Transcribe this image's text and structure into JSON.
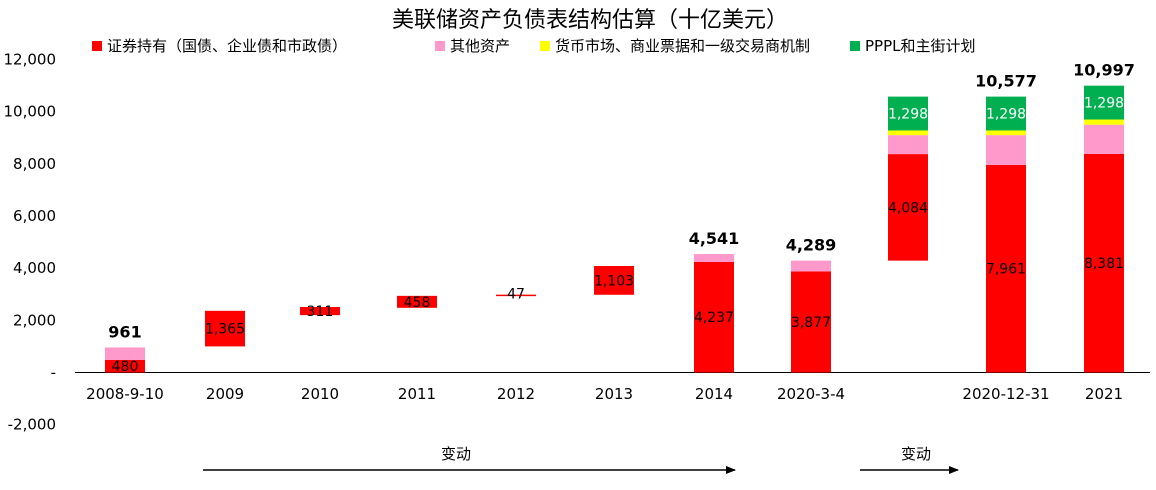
{
  "chart_data": {
    "type": "bar",
    "title": "美联储资产负债表结构估算（十亿美元）",
    "legend": [
      {
        "name": "证券持有（国债、企业债和市政债）",
        "color": "#ff0000"
      },
      {
        "name": "其他资产",
        "color": "#ff99cc"
      },
      {
        "name": "货币市场、商业票据和一级交易商机制",
        "color": "#ffff00"
      },
      {
        "name": "PPPL和主街计划",
        "color": "#00b050"
      }
    ],
    "y_ticks": [
      "12,000",
      "10,000",
      "8,000",
      "6,000",
      "4,000",
      "2,000",
      "-",
      "-2,000"
    ],
    "y_tick_values": [
      12000,
      10000,
      8000,
      6000,
      4000,
      2000,
      0,
      -2000
    ],
    "ylim": [
      -2000,
      12000
    ],
    "categories": [
      "2008-9-10",
      "2009",
      "2010",
      "2011",
      "2012",
      "2013",
      "2014",
      "2020-3-4",
      "",
      "2020-12-31",
      "2021"
    ],
    "bars": [
      {
        "category": "2008-9-10",
        "total_label": "961",
        "segments": [
          {
            "series": "证券持有（国债、企业债和市政债）",
            "from": 0,
            "to": 480,
            "label": "480"
          },
          {
            "series": "其他资产",
            "from": 480,
            "to": 961,
            "label": ""
          }
        ]
      },
      {
        "category": "2009",
        "total_label": "",
        "segments": [
          {
            "series": "证券持有（国债、企业债和市政债）",
            "from": 1000,
            "to": 2365,
            "label": "1,365"
          }
        ]
      },
      {
        "category": "2010",
        "total_label": "",
        "segments": [
          {
            "series": "证券持有（国债、企业债和市政债）",
            "from": 2200,
            "to": 2511,
            "label": "311"
          }
        ]
      },
      {
        "category": "2011",
        "total_label": "",
        "segments": [
          {
            "series": "证券持有（国债、企业债和市政债）",
            "from": 2480,
            "to": 2938,
            "label": "458"
          }
        ]
      },
      {
        "category": "2012",
        "total_label": "",
        "segments": [
          {
            "series": "证券持有（国债、企业债和市政债）",
            "from": 2938,
            "to": 2985,
            "label": "47"
          }
        ]
      },
      {
        "category": "2013",
        "total_label": "",
        "segments": [
          {
            "series": "证券持有（国债、企业债和市政债）",
            "from": 2980,
            "to": 4083,
            "label": "1,103"
          }
        ]
      },
      {
        "category": "2014",
        "total_label": "4,541",
        "segments": [
          {
            "series": "证券持有（国债、企业债和市政债）",
            "from": 0,
            "to": 4237,
            "label": "4,237"
          },
          {
            "series": "其他资产",
            "from": 4237,
            "to": 4541,
            "label": ""
          }
        ]
      },
      {
        "category": "2020-3-4",
        "total_label": "4,289",
        "segments": [
          {
            "series": "证券持有（国债、企业债和市政债）",
            "from": 0,
            "to": 3877,
            "label": "3,877"
          },
          {
            "series": "其他资产",
            "from": 3877,
            "to": 4289,
            "label": ""
          }
        ]
      },
      {
        "category": "",
        "total_label": "",
        "segments": [
          {
            "series": "证券持有（国债、企业债和市政债）",
            "from": 4289,
            "to": 8373,
            "label": "4,084"
          },
          {
            "series": "其他资产",
            "from": 8373,
            "to": 9100,
            "label": ""
          },
          {
            "series": "货币市场、商业票据和一级交易商机制",
            "from": 9100,
            "to": 9279,
            "label": ""
          },
          {
            "series": "PPPL和主街计划",
            "from": 9279,
            "to": 10577,
            "label": "1,298"
          }
        ]
      },
      {
        "category": "2020-12-31",
        "total_label": "10,577",
        "segments": [
          {
            "series": "证券持有（国债、企业债和市政债）",
            "from": 0,
            "to": 7961,
            "label": "7,961"
          },
          {
            "series": "其他资产",
            "from": 7961,
            "to": 9100,
            "label": ""
          },
          {
            "series": "货币市场、商业票据和一级交易商机制",
            "from": 9100,
            "to": 9279,
            "label": ""
          },
          {
            "series": "PPPL和主街计划",
            "from": 9279,
            "to": 10577,
            "label": "1,298"
          }
        ]
      },
      {
        "category": "2021",
        "total_label": "10,997",
        "segments": [
          {
            "series": "证券持有（国债、企业债和市政债）",
            "from": 0,
            "to": 8381,
            "label": "8,381"
          },
          {
            "series": "其他资产",
            "from": 8381,
            "to": 9500,
            "label": ""
          },
          {
            "series": "货币市场、商业票据和一级交易商机制",
            "from": 9500,
            "to": 9699,
            "label": ""
          },
          {
            "series": "PPPL和主街计划",
            "from": 9699,
            "to": 10997,
            "label": "1,298"
          }
        ]
      }
    ],
    "annotations": [
      "变动",
      "变动"
    ],
    "grid": false,
    "legend_position": "top"
  }
}
